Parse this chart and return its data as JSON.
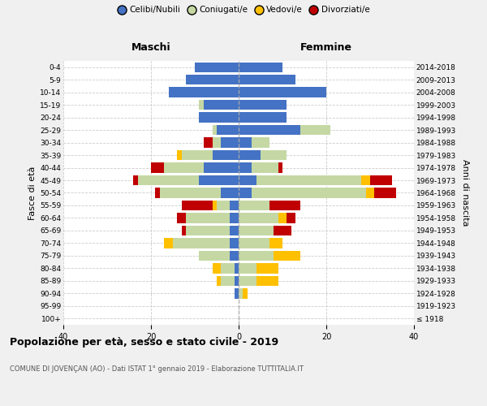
{
  "age_groups": [
    "100+",
    "95-99",
    "90-94",
    "85-89",
    "80-84",
    "75-79",
    "70-74",
    "65-69",
    "60-64",
    "55-59",
    "50-54",
    "45-49",
    "40-44",
    "35-39",
    "30-34",
    "25-29",
    "20-24",
    "15-19",
    "10-14",
    "5-9",
    "0-4"
  ],
  "birth_years": [
    "≤ 1918",
    "1919-1923",
    "1924-1928",
    "1929-1933",
    "1934-1938",
    "1939-1943",
    "1944-1948",
    "1949-1953",
    "1954-1958",
    "1959-1963",
    "1964-1968",
    "1969-1973",
    "1974-1978",
    "1979-1983",
    "1984-1988",
    "1989-1993",
    "1994-1998",
    "1999-2003",
    "2004-2008",
    "2009-2013",
    "2014-2018"
  ],
  "maschi": {
    "celibi": [
      0,
      0,
      1,
      1,
      1,
      2,
      2,
      2,
      2,
      2,
      4,
      9,
      8,
      6,
      4,
      5,
      9,
      8,
      16,
      12,
      10
    ],
    "coniugati": [
      0,
      0,
      0,
      3,
      3,
      7,
      13,
      10,
      10,
      3,
      14,
      14,
      9,
      7,
      2,
      1,
      0,
      1,
      0,
      0,
      0
    ],
    "vedovi": [
      0,
      0,
      0,
      1,
      2,
      0,
      2,
      0,
      0,
      1,
      0,
      0,
      0,
      1,
      0,
      0,
      0,
      0,
      0,
      0,
      0
    ],
    "divorziati": [
      0,
      0,
      0,
      0,
      0,
      0,
      0,
      1,
      2,
      7,
      1,
      1,
      3,
      0,
      2,
      0,
      0,
      0,
      0,
      0,
      0
    ]
  },
  "femmine": {
    "celibi": [
      0,
      0,
      0,
      0,
      0,
      0,
      0,
      0,
      0,
      0,
      3,
      4,
      3,
      5,
      3,
      14,
      11,
      11,
      20,
      13,
      10
    ],
    "coniugati": [
      0,
      0,
      1,
      4,
      4,
      8,
      7,
      8,
      9,
      7,
      26,
      24,
      6,
      6,
      4,
      7,
      0,
      0,
      0,
      0,
      0
    ],
    "vedovi": [
      0,
      0,
      1,
      5,
      5,
      6,
      3,
      0,
      2,
      0,
      2,
      2,
      0,
      0,
      0,
      0,
      0,
      0,
      0,
      0,
      0
    ],
    "divorziati": [
      0,
      0,
      0,
      0,
      0,
      0,
      0,
      4,
      2,
      7,
      5,
      5,
      1,
      0,
      0,
      0,
      0,
      0,
      0,
      0,
      0
    ]
  },
  "colors": {
    "celibi": "#4472c4",
    "coniugati": "#c5d8a4",
    "vedovi": "#ffc000",
    "divorziati": "#c00000"
  },
  "legend_labels": [
    "Celibi/Nubili",
    "Coniugati/e",
    "Vedovi/e",
    "Divorziati/e"
  ],
  "xlim": 40,
  "title": "Popolazione per età, sesso e stato civile - 2019",
  "subtitle": "COMUNE DI JOVENÇAN (AO) - Dati ISTAT 1° gennaio 2019 - Elaborazione TUTTITALIA.IT",
  "ylabel_left": "Fasce di età",
  "ylabel_right": "Anni di nascita",
  "xlabel_left": "Maschi",
  "xlabel_right": "Femmine",
  "bg_color": "#f0f0f0",
  "plot_bg_color": "#ffffff"
}
